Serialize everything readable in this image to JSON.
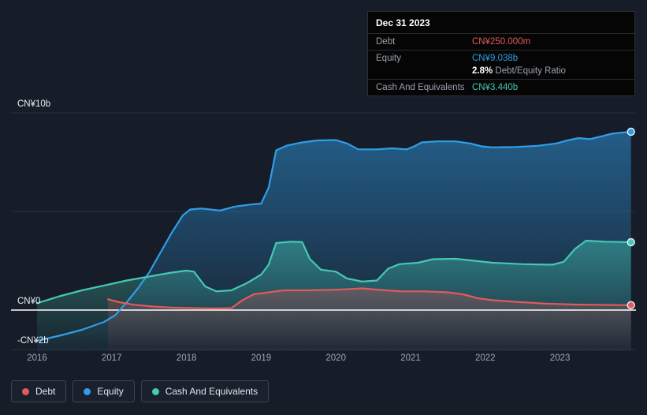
{
  "colors": {
    "debt": "#e25a5a",
    "equity": "#2f9ee8",
    "cash": "#45c8b4",
    "zero_line": "#ffffff",
    "gridline": "#242e3c",
    "background": "#171d28"
  },
  "tooltip": {
    "date": "Dec 31 2023",
    "debt_label": "Debt",
    "debt_value": "CN¥250.000m",
    "equity_label": "Equity",
    "equity_value": "CN¥9.038b",
    "ratio_value": "2.8%",
    "ratio_label": "Debt/Equity Ratio",
    "cash_label": "Cash And Equivalents",
    "cash_value": "CN¥3.440b"
  },
  "legend": {
    "debt": "Debt",
    "equity": "Equity",
    "cash": "Cash And Equivalents"
  },
  "chart_data": {
    "type": "area",
    "title": "",
    "ylabel": "",
    "xlabel": "",
    "units": "CN¥ billions",
    "ylim": [
      -2.4,
      10.6
    ],
    "xlim": [
      2016,
      2024
    ],
    "grid": true,
    "legend_position": "bottom-left",
    "x_axis": {
      "ticks": [
        2016,
        2017,
        2018,
        2019,
        2020,
        2021,
        2022,
        2023
      ]
    },
    "y_axis": {
      "labels": [
        {
          "text": "CN¥10b",
          "value": 10
        },
        {
          "text": "CN¥0",
          "value": 0
        },
        {
          "text": "-CN¥2b",
          "value": -2
        }
      ]
    },
    "gridlines": [
      10,
      5,
      -2
    ],
    "series": [
      {
        "name": "Equity",
        "color": "#2f9ee8",
        "fill_top_opacity": 0.5,
        "points": [
          [
            2016.0,
            -1.55
          ],
          [
            2016.3,
            -1.3
          ],
          [
            2016.6,
            -1.0
          ],
          [
            2016.9,
            -0.6
          ],
          [
            2017.05,
            -0.25
          ],
          [
            2017.2,
            0.4
          ],
          [
            2017.35,
            1.1
          ],
          [
            2017.5,
            1.9
          ],
          [
            2017.65,
            2.9
          ],
          [
            2017.8,
            3.9
          ],
          [
            2017.95,
            4.8
          ],
          [
            2018.05,
            5.1
          ],
          [
            2018.2,
            5.15
          ],
          [
            2018.45,
            5.05
          ],
          [
            2018.65,
            5.25
          ],
          [
            2018.85,
            5.35
          ],
          [
            2019.0,
            5.4
          ],
          [
            2019.1,
            6.2
          ],
          [
            2019.2,
            8.1
          ],
          [
            2019.35,
            8.35
          ],
          [
            2019.55,
            8.5
          ],
          [
            2019.75,
            8.6
          ],
          [
            2020.0,
            8.62
          ],
          [
            2020.15,
            8.45
          ],
          [
            2020.3,
            8.15
          ],
          [
            2020.55,
            8.15
          ],
          [
            2020.75,
            8.2
          ],
          [
            2020.95,
            8.15
          ],
          [
            2021.05,
            8.3
          ],
          [
            2021.15,
            8.5
          ],
          [
            2021.35,
            8.55
          ],
          [
            2021.6,
            8.55
          ],
          [
            2021.8,
            8.45
          ],
          [
            2021.95,
            8.3
          ],
          [
            2022.1,
            8.25
          ],
          [
            2022.4,
            8.27
          ],
          [
            2022.7,
            8.33
          ],
          [
            2022.95,
            8.45
          ],
          [
            2023.1,
            8.6
          ],
          [
            2023.25,
            8.72
          ],
          [
            2023.4,
            8.67
          ],
          [
            2023.55,
            8.8
          ],
          [
            2023.7,
            8.95
          ],
          [
            2023.95,
            9.04
          ]
        ],
        "end_value_label": "CN¥9.038b"
      },
      {
        "name": "Cash And Equivalents",
        "color": "#45c8b4",
        "fill_top_opacity": 0.45,
        "points": [
          [
            2016.0,
            0.35
          ],
          [
            2016.3,
            0.7
          ],
          [
            2016.6,
            1.0
          ],
          [
            2016.9,
            1.25
          ],
          [
            2017.2,
            1.5
          ],
          [
            2017.5,
            1.7
          ],
          [
            2017.8,
            1.9
          ],
          [
            2018.0,
            2.0
          ],
          [
            2018.1,
            1.95
          ],
          [
            2018.25,
            1.2
          ],
          [
            2018.4,
            0.95
          ],
          [
            2018.6,
            1.0
          ],
          [
            2018.8,
            1.35
          ],
          [
            2019.0,
            1.8
          ],
          [
            2019.1,
            2.3
          ],
          [
            2019.2,
            3.4
          ],
          [
            2019.4,
            3.47
          ],
          [
            2019.55,
            3.45
          ],
          [
            2019.65,
            2.6
          ],
          [
            2019.8,
            2.05
          ],
          [
            2020.0,
            1.95
          ],
          [
            2020.15,
            1.6
          ],
          [
            2020.35,
            1.45
          ],
          [
            2020.55,
            1.5
          ],
          [
            2020.7,
            2.1
          ],
          [
            2020.85,
            2.33
          ],
          [
            2021.1,
            2.4
          ],
          [
            2021.3,
            2.58
          ],
          [
            2021.6,
            2.6
          ],
          [
            2021.85,
            2.5
          ],
          [
            2022.1,
            2.4
          ],
          [
            2022.5,
            2.33
          ],
          [
            2022.9,
            2.3
          ],
          [
            2023.05,
            2.45
          ],
          [
            2023.2,
            3.1
          ],
          [
            2023.35,
            3.52
          ],
          [
            2023.6,
            3.47
          ],
          [
            2023.95,
            3.44
          ]
        ],
        "end_value_label": "CN¥3.440b"
      },
      {
        "name": "Debt",
        "color": "#e25a5a",
        "fill_top_opacity": 0.3,
        "points": [
          [
            2016.95,
            0.55
          ],
          [
            2017.1,
            0.4
          ],
          [
            2017.3,
            0.27
          ],
          [
            2017.55,
            0.18
          ],
          [
            2017.8,
            0.13
          ],
          [
            2018.1,
            0.1
          ],
          [
            2018.4,
            0.08
          ],
          [
            2018.6,
            0.1
          ],
          [
            2018.75,
            0.5
          ],
          [
            2018.9,
            0.8
          ],
          [
            2019.1,
            0.9
          ],
          [
            2019.3,
            1.0
          ],
          [
            2019.6,
            1.0
          ],
          [
            2019.9,
            1.02
          ],
          [
            2020.1,
            1.05
          ],
          [
            2020.35,
            1.1
          ],
          [
            2020.6,
            1.02
          ],
          [
            2020.9,
            0.95
          ],
          [
            2021.2,
            0.95
          ],
          [
            2021.5,
            0.9
          ],
          [
            2021.7,
            0.8
          ],
          [
            2021.9,
            0.6
          ],
          [
            2022.1,
            0.5
          ],
          [
            2022.4,
            0.42
          ],
          [
            2022.8,
            0.33
          ],
          [
            2023.2,
            0.28
          ],
          [
            2023.6,
            0.26
          ],
          [
            2023.95,
            0.25
          ]
        ],
        "end_value_label": "CN¥250.000m"
      }
    ]
  }
}
